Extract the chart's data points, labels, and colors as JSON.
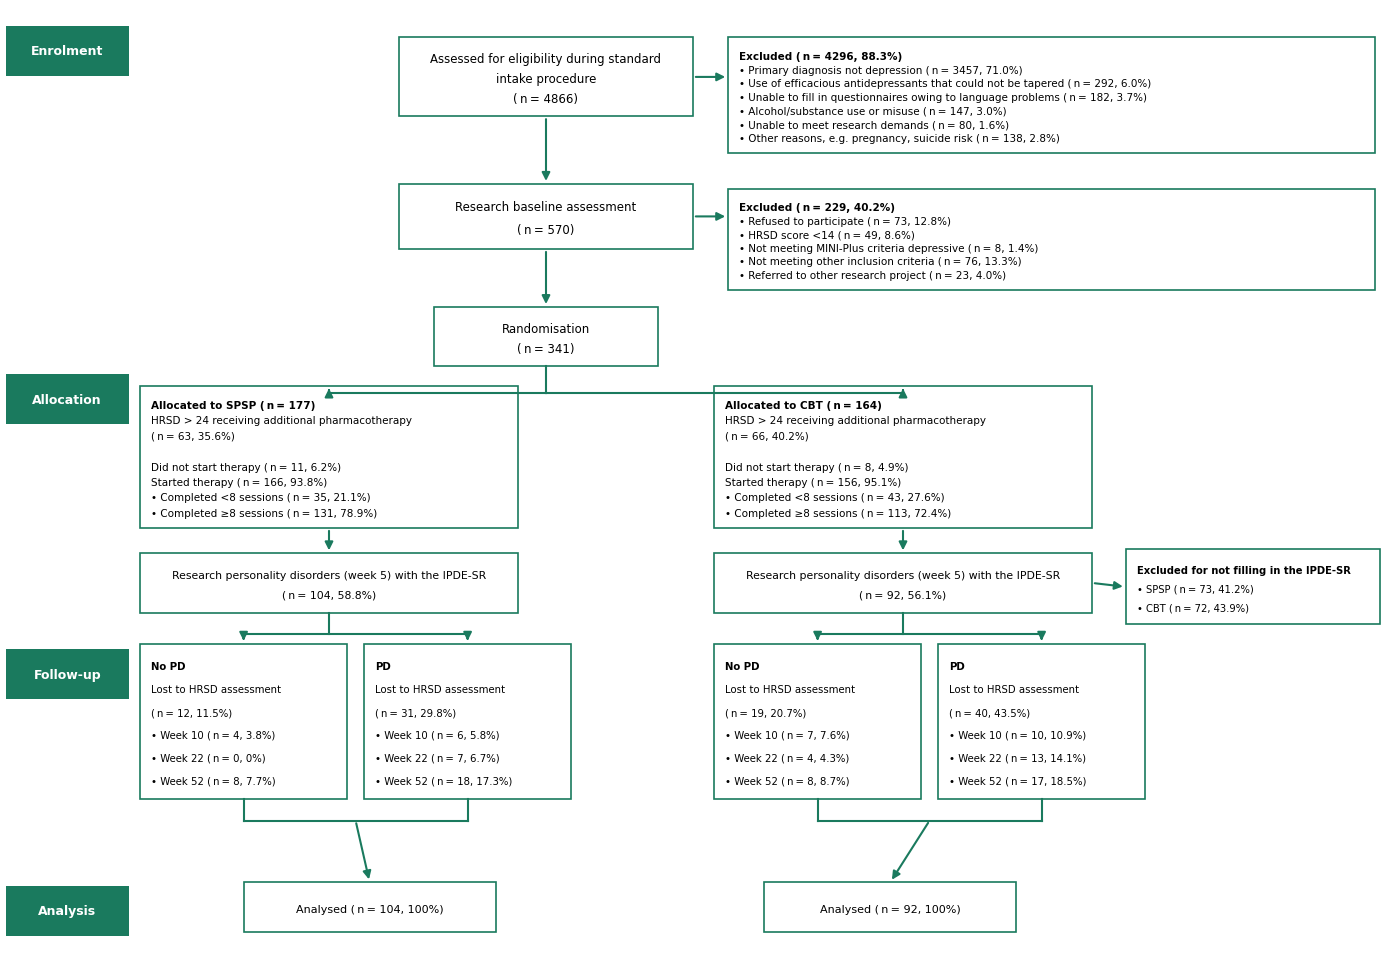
{
  "bg_color": "#ffffff",
  "border_color": "#1a7a5e",
  "label_bg": "#1a7a5e",
  "label_text_color": "#ffffff",
  "arrow_color": "#1a7a5e",
  "text_color": "#000000",
  "fig_w": 14.0,
  "fig_h": 9.62,
  "dpi": 100,
  "labels": [
    {
      "text": "Enrolment",
      "xf": 0.004,
      "yf": 0.92,
      "wf": 0.088,
      "hf": 0.052
    },
    {
      "text": "Allocation",
      "xf": 0.004,
      "yf": 0.558,
      "wf": 0.088,
      "hf": 0.052
    },
    {
      "text": "Follow-up",
      "xf": 0.004,
      "yf": 0.272,
      "wf": 0.088,
      "hf": 0.052
    },
    {
      "text": "Analysis",
      "xf": 0.004,
      "yf": 0.026,
      "wf": 0.088,
      "hf": 0.052
    }
  ],
  "boxes": [
    {
      "id": "assess",
      "xf": 0.285,
      "yf": 0.878,
      "wf": 0.21,
      "hf": 0.082,
      "align": "center",
      "fontsize": 8.5,
      "lines": [
        {
          "text": "Assessed for eligibility during standard",
          "bold": false
        },
        {
          "text": "intake procedure",
          "bold": false
        },
        {
          "text": "( n = 4866)",
          "bold": false
        }
      ]
    },
    {
      "id": "excl1",
      "xf": 0.52,
      "yf": 0.84,
      "wf": 0.462,
      "hf": 0.12,
      "align": "left",
      "fontsize": 7.5,
      "lines": [
        {
          "text": "Excluded ( n = 4296, 88.3%)",
          "bold": true
        },
        {
          "text": "• Primary diagnosis not depression ( n = 3457, 71.0%)",
          "bold": false
        },
        {
          "text": "• Use of efficacious antidepressants that could not be tapered ( n = 292, 6.0%)",
          "bold": false
        },
        {
          "text": "• Unable to fill in questionnaires owing to language problems ( n = 182, 3.7%)",
          "bold": false
        },
        {
          "text": "• Alcohol/substance use or misuse ( n = 147, 3.0%)",
          "bold": false
        },
        {
          "text": "• Unable to meet research demands ( n = 80, 1.6%)",
          "bold": false
        },
        {
          "text": "• Other reasons, e.g. pregnancy, suicide risk ( n = 138, 2.8%)",
          "bold": false
        }
      ]
    },
    {
      "id": "baseline",
      "xf": 0.285,
      "yf": 0.74,
      "wf": 0.21,
      "hf": 0.068,
      "align": "center",
      "fontsize": 8.5,
      "lines": [
        {
          "text": "Research baseline assessment",
          "bold": false
        },
        {
          "text": "( n = 570)",
          "bold": false
        }
      ]
    },
    {
      "id": "excl2",
      "xf": 0.52,
      "yf": 0.698,
      "wf": 0.462,
      "hf": 0.105,
      "align": "left",
      "fontsize": 7.5,
      "lines": [
        {
          "text": "Excluded ( n = 229, 40.2%)",
          "bold": true
        },
        {
          "text": "• Refused to participate ( n = 73, 12.8%)",
          "bold": false
        },
        {
          "text": "• HRSD score <14 ( n = 49, 8.6%)",
          "bold": false
        },
        {
          "text": "• Not meeting MINI-Plus criteria depressive ( n = 8, 1.4%)",
          "bold": false
        },
        {
          "text": "• Not meeting other inclusion criteria ( n = 76, 13.3%)",
          "bold": false
        },
        {
          "text": "• Referred to other research project ( n = 23, 4.0%)",
          "bold": false
        }
      ]
    },
    {
      "id": "random",
      "xf": 0.31,
      "yf": 0.618,
      "wf": 0.16,
      "hf": 0.062,
      "align": "center",
      "fontsize": 8.5,
      "lines": [
        {
          "text": "Randomisation",
          "bold": false
        },
        {
          "text": "( n = 341)",
          "bold": false
        }
      ]
    },
    {
      "id": "spsp",
      "xf": 0.1,
      "yf": 0.45,
      "wf": 0.27,
      "hf": 0.148,
      "align": "left",
      "fontsize": 7.5,
      "lines": [
        {
          "text": "Allocated to SPSP ( n = 177)",
          "bold": true
        },
        {
          "text": "HRSD > 24 receiving additional pharmacotherapy",
          "bold": false
        },
        {
          "text": "( n = 63, 35.6%)",
          "bold": false
        },
        {
          "text": "",
          "bold": false
        },
        {
          "text": "Did not start therapy ( n = 11, 6.2%)",
          "bold": false
        },
        {
          "text": "Started therapy ( n = 166, 93.8%)",
          "bold": false
        },
        {
          "text": "• Completed <8 sessions ( n = 35, 21.1%)",
          "bold": false
        },
        {
          "text": "• Completed ≥8 sessions ( n = 131, 78.9%)",
          "bold": false
        }
      ]
    },
    {
      "id": "cbt",
      "xf": 0.51,
      "yf": 0.45,
      "wf": 0.27,
      "hf": 0.148,
      "align": "left",
      "fontsize": 7.5,
      "lines": [
        {
          "text": "Allocated to CBT ( n = 164)",
          "bold": true
        },
        {
          "text": "HRSD > 24 receiving additional pharmacotherapy",
          "bold": false
        },
        {
          "text": "( n = 66, 40.2%)",
          "bold": false
        },
        {
          "text": "",
          "bold": false
        },
        {
          "text": "Did not start therapy ( n = 8, 4.9%)",
          "bold": false
        },
        {
          "text": "Started therapy ( n = 156, 95.1%)",
          "bold": false
        },
        {
          "text": "• Completed <8 sessions ( n = 43, 27.6%)",
          "bold": false
        },
        {
          "text": "• Completed ≥8 sessions ( n = 113, 72.4%)",
          "bold": false
        }
      ]
    },
    {
      "id": "ipde_spsp",
      "xf": 0.1,
      "yf": 0.362,
      "wf": 0.27,
      "hf": 0.062,
      "align": "center",
      "fontsize": 7.8,
      "lines": [
        {
          "text": "Research personality disorders (week 5) with the IPDE-SR",
          "bold": false
        },
        {
          "text": "( n = 104, 58.8%)",
          "bold": false
        }
      ]
    },
    {
      "id": "ipde_cbt",
      "xf": 0.51,
      "yf": 0.362,
      "wf": 0.27,
      "hf": 0.062,
      "align": "center",
      "fontsize": 7.8,
      "lines": [
        {
          "text": "Research personality disorders (week 5) with the IPDE-SR",
          "bold": false
        },
        {
          "text": "( n = 92, 56.1%)",
          "bold": false
        }
      ]
    },
    {
      "id": "excl_ipde",
      "xf": 0.804,
      "yf": 0.35,
      "wf": 0.182,
      "hf": 0.078,
      "align": "left",
      "fontsize": 7.2,
      "lines": [
        {
          "text": "Excluded for not filling in the IPDE-SR",
          "bold": true
        },
        {
          "text": "• SPSP ( n = 73, 41.2%)",
          "bold": false
        },
        {
          "text": "• CBT ( n = 72, 43.9%)",
          "bold": false
        }
      ]
    },
    {
      "id": "nopd_spsp",
      "xf": 0.1,
      "yf": 0.168,
      "wf": 0.148,
      "hf": 0.162,
      "align": "left",
      "fontsize": 7.3,
      "lines": [
        {
          "text": "No PD",
          "bold": true
        },
        {
          "text": "Lost to HRSD assessment",
          "bold": false
        },
        {
          "text": "( n = 12, 11.5%)",
          "bold": false
        },
        {
          "text": "• Week 10 ( n = 4, 3.8%)",
          "bold": false
        },
        {
          "text": "• Week 22 ( n = 0, 0%)",
          "bold": false
        },
        {
          "text": "• Week 52 ( n = 8, 7.7%)",
          "bold": false
        }
      ]
    },
    {
      "id": "pd_spsp",
      "xf": 0.26,
      "yf": 0.168,
      "wf": 0.148,
      "hf": 0.162,
      "align": "left",
      "fontsize": 7.3,
      "lines": [
        {
          "text": "PD",
          "bold": true
        },
        {
          "text": "Lost to HRSD assessment",
          "bold": false
        },
        {
          "text": "( n = 31, 29.8%)",
          "bold": false
        },
        {
          "text": "• Week 10 ( n = 6, 5.8%)",
          "bold": false
        },
        {
          "text": "• Week 22 ( n = 7, 6.7%)",
          "bold": false
        },
        {
          "text": "• Week 52 ( n = 18, 17.3%)",
          "bold": false
        }
      ]
    },
    {
      "id": "nopd_cbt",
      "xf": 0.51,
      "yf": 0.168,
      "wf": 0.148,
      "hf": 0.162,
      "align": "left",
      "fontsize": 7.3,
      "lines": [
        {
          "text": "No PD",
          "bold": true
        },
        {
          "text": "Lost to HRSD assessment",
          "bold": false
        },
        {
          "text": "( n = 19, 20.7%)",
          "bold": false
        },
        {
          "text": "• Week 10 ( n = 7, 7.6%)",
          "bold": false
        },
        {
          "text": "• Week 22 ( n = 4, 4.3%)",
          "bold": false
        },
        {
          "text": "• Week 52 ( n = 8, 8.7%)",
          "bold": false
        }
      ]
    },
    {
      "id": "pd_cbt",
      "xf": 0.67,
      "yf": 0.168,
      "wf": 0.148,
      "hf": 0.162,
      "align": "left",
      "fontsize": 7.3,
      "lines": [
        {
          "text": "PD",
          "bold": true
        },
        {
          "text": "Lost to HRSD assessment",
          "bold": false
        },
        {
          "text": "( n = 40, 43.5%)",
          "bold": false
        },
        {
          "text": "• Week 10 ( n = 10, 10.9%)",
          "bold": false
        },
        {
          "text": "• Week 22 ( n = 13, 14.1%)",
          "bold": false
        },
        {
          "text": "• Week 52 ( n = 17, 18.5%)",
          "bold": false
        }
      ]
    },
    {
      "id": "anal_spsp",
      "xf": 0.174,
      "yf": 0.03,
      "wf": 0.18,
      "hf": 0.052,
      "align": "center",
      "fontsize": 8.0,
      "lines": [
        {
          "text": "Analysed ( n = 104, 100%)",
          "bold": false
        }
      ]
    },
    {
      "id": "anal_cbt",
      "xf": 0.546,
      "yf": 0.03,
      "wf": 0.18,
      "hf": 0.052,
      "align": "center",
      "fontsize": 8.0,
      "lines": [
        {
          "text": "Analysed ( n = 92, 100%)",
          "bold": false
        }
      ]
    }
  ]
}
